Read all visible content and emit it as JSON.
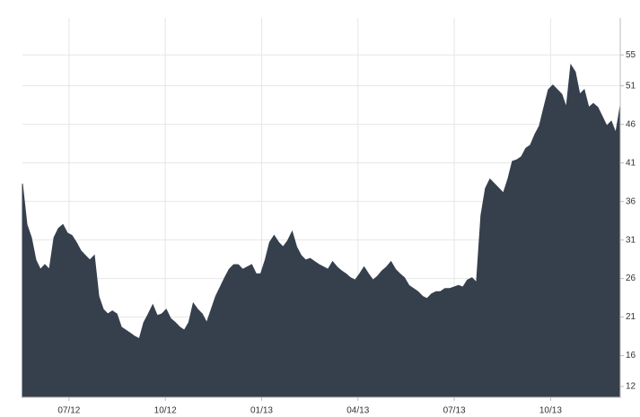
{
  "chart_data": {
    "type": "area",
    "color": "#36404d",
    "grid": true,
    "xlim": [
      5.55,
      24.17
    ],
    "ylim": [
      10.6,
      59.8
    ],
    "xticks": [
      {
        "value": 7,
        "label": "07/12"
      },
      {
        "value": 10,
        "label": "10/12"
      },
      {
        "value": 13,
        "label": "01/13"
      },
      {
        "value": 16,
        "label": "04/13"
      },
      {
        "value": 19,
        "label": "07/13"
      },
      {
        "value": 22,
        "label": "10/13"
      }
    ],
    "yticks": [
      12,
      16,
      21,
      26,
      31,
      36,
      41,
      46,
      51,
      55
    ],
    "x": [
      5.55,
      5.69,
      5.83,
      5.97,
      6.11,
      6.25,
      6.39,
      6.53,
      6.67,
      6.81,
      6.95,
      7.09,
      7.23,
      7.37,
      7.51,
      7.65,
      7.79,
      7.93,
      8.07,
      8.21,
      8.35,
      8.49,
      8.63,
      8.77,
      8.91,
      9.05,
      9.19,
      9.33,
      9.47,
      9.61,
      9.75,
      9.89,
      10.03,
      10.17,
      10.31,
      10.45,
      10.59,
      10.73,
      10.87,
      11.01,
      11.15,
      11.29,
      11.43,
      11.57,
      11.71,
      11.85,
      11.99,
      12.13,
      12.27,
      12.41,
      12.55,
      12.69,
      12.83,
      12.97,
      13.11,
      13.25,
      13.39,
      13.53,
      13.67,
      13.81,
      13.95,
      14.09,
      14.23,
      14.37,
      14.51,
      14.65,
      14.79,
      14.93,
      15.07,
      15.21,
      15.35,
      15.49,
      15.63,
      15.77,
      15.91,
      16.05,
      16.19,
      16.33,
      16.47,
      16.61,
      16.75,
      16.89,
      17.03,
      17.17,
      17.31,
      17.45,
      17.59,
      17.73,
      17.87,
      18.01,
      18.15,
      18.29,
      18.43,
      18.57,
      18.71,
      18.85,
      18.99,
      19.13,
      19.27,
      19.41,
      19.55,
      19.69,
      19.83,
      19.97,
      20.11,
      20.25,
      20.39,
      20.53,
      20.67,
      20.81,
      20.95,
      21.09,
      21.23,
      21.37,
      21.51,
      21.65,
      21.79,
      21.93,
      22.07,
      22.21,
      22.35,
      22.49,
      22.63,
      22.77,
      22.91,
      23.05,
      23.19,
      23.33,
      23.47,
      23.61,
      23.75,
      23.89,
      24.03,
      24.17
    ],
    "values": [
      38.3,
      33.0,
      31.3,
      28.4,
      27.2,
      27.8,
      27.2,
      31.3,
      32.5,
      33.0,
      31.9,
      31.6,
      30.7,
      29.6,
      29.0,
      28.4,
      29.0,
      23.7,
      22.0,
      21.4,
      21.8,
      21.4,
      19.7,
      19.3,
      18.9,
      18.5,
      18.2,
      20.3,
      21.4,
      22.6,
      21.2,
      21.4,
      22.0,
      20.8,
      20.3,
      19.7,
      19.3,
      20.3,
      22.8,
      22.0,
      21.4,
      20.3,
      22.0,
      23.7,
      24.9,
      26.1,
      27.2,
      27.8,
      27.8,
      27.2,
      27.5,
      27.8,
      26.6,
      26.6,
      28.4,
      30.7,
      31.6,
      30.7,
      30.1,
      30.9,
      32.1,
      30.1,
      29.0,
      28.4,
      28.6,
      28.2,
      27.8,
      27.5,
      27.2,
      28.2,
      27.5,
      27.0,
      26.6,
      26.1,
      25.8,
      26.6,
      27.5,
      26.6,
      25.8,
      26.3,
      27.0,
      27.5,
      28.2,
      27.2,
      26.6,
      26.1,
      25.1,
      24.7,
      24.3,
      23.7,
      23.4,
      24.0,
      24.3,
      24.3,
      24.7,
      24.7,
      24.9,
      25.1,
      24.9,
      25.8,
      26.1,
      25.5,
      34.2,
      37.7,
      38.9,
      38.3,
      37.7,
      37.1,
      38.9,
      41.2,
      41.4,
      41.8,
      42.9,
      43.3,
      44.7,
      45.8,
      48.2,
      50.5,
      51.1,
      50.5,
      49.9,
      48.2,
      53.7,
      52.8,
      49.9,
      50.5,
      48.2,
      48.7,
      48.2,
      47.0,
      45.8,
      46.4,
      44.9,
      48.4
    ]
  }
}
